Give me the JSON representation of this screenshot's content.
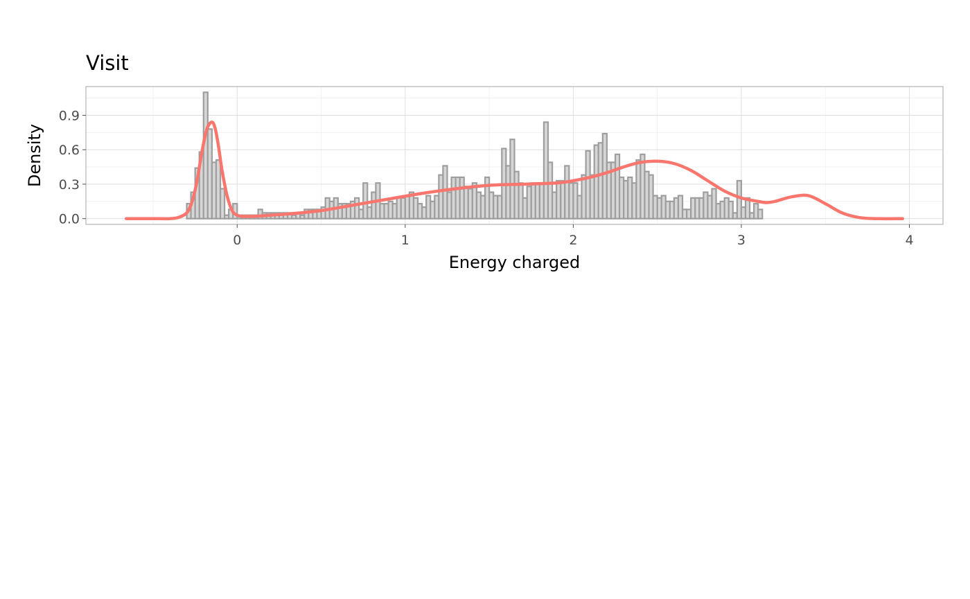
{
  "chart_data": {
    "type": "histogram",
    "title": "Visit",
    "xlabel": "Energy charged",
    "ylabel": "Density",
    "xlim": [
      -0.9,
      4.2
    ],
    "ylim": [
      -0.05,
      1.15
    ],
    "x_ticks": [
      0,
      1,
      2,
      3,
      4
    ],
    "x_tick_labels": [
      "0",
      "1",
      "2",
      "3",
      "4"
    ],
    "y_ticks": [
      0.0,
      0.3,
      0.6,
      0.9
    ],
    "y_tick_labels": [
      "0.0",
      "0.3",
      "0.6",
      "0.9"
    ],
    "grid": true,
    "histogram": {
      "bin_width": 0.025,
      "start": -0.3,
      "values": [
        0.13,
        0.23,
        0.44,
        0.58,
        1.1,
        0.78,
        0.49,
        0.51,
        0.26,
        0.03,
        0.08,
        0.13,
        0.03,
        0.03,
        0.03,
        0.03,
        0.03,
        0.08,
        0.05,
        0.05,
        0.05,
        0.05,
        0.05,
        0.05,
        0.05,
        0.03,
        0.05,
        0.03,
        0.08,
        0.08,
        0.08,
        0.08,
        0.1,
        0.18,
        0.15,
        0.18,
        0.13,
        0.13,
        0.13,
        0.15,
        0.18,
        0.08,
        0.31,
        0.1,
        0.23,
        0.31,
        0.13,
        0.13,
        0.15,
        0.13,
        0.18,
        0.18,
        0.2,
        0.23,
        0.18,
        0.13,
        0.1,
        0.2,
        0.15,
        0.2,
        0.38,
        0.46,
        0.23,
        0.36,
        0.36,
        0.36,
        0.28,
        0.26,
        0.31,
        0.23,
        0.2,
        0.36,
        0.23,
        0.2,
        0.2,
        0.61,
        0.46,
        0.69,
        0.41,
        0.31,
        0.18,
        0.28,
        0.31,
        0.31,
        0.31,
        0.84,
        0.49,
        0.23,
        0.33,
        0.33,
        0.46,
        0.31,
        0.31,
        0.2,
        0.38,
        0.59,
        0.38,
        0.64,
        0.66,
        0.74,
        0.49,
        0.49,
        0.56,
        0.36,
        0.33,
        0.36,
        0.31,
        0.51,
        0.56,
        0.41,
        0.38,
        0.2,
        0.18,
        0.2,
        0.15,
        0.15,
        0.18,
        0.2,
        0.08,
        0.08,
        0.18,
        0.18,
        0.18,
        0.23,
        0.2,
        0.26,
        0.13,
        0.15,
        0.18,
        0.15,
        0.05,
        0.33,
        0.1,
        0.18,
        0.05,
        0.13,
        0.08
      ]
    },
    "series": [
      {
        "type": "density",
        "color": "#F8766D",
        "x": [
          -0.66,
          -0.5,
          -0.4,
          -0.35,
          -0.3,
          -0.27,
          -0.24,
          -0.21,
          -0.18,
          -0.15,
          -0.13,
          -0.11,
          -0.09,
          -0.06,
          -0.03,
          0.0,
          0.03,
          0.06,
          0.1,
          0.2,
          0.3,
          0.5,
          0.7,
          0.9,
          1.1,
          1.3,
          1.5,
          1.7,
          1.9,
          2.0,
          2.1,
          2.2,
          2.3,
          2.4,
          2.5,
          2.6,
          2.7,
          2.8,
          2.9,
          3.0,
          3.1,
          3.15,
          3.2,
          3.3,
          3.4,
          3.5,
          3.6,
          3.7,
          3.8,
          3.96
        ],
        "y": [
          0.0,
          0.0,
          0.0,
          0.01,
          0.05,
          0.14,
          0.32,
          0.58,
          0.78,
          0.84,
          0.78,
          0.62,
          0.42,
          0.2,
          0.07,
          0.03,
          0.02,
          0.02,
          0.02,
          0.03,
          0.04,
          0.07,
          0.12,
          0.17,
          0.22,
          0.26,
          0.29,
          0.3,
          0.31,
          0.33,
          0.36,
          0.4,
          0.45,
          0.49,
          0.5,
          0.48,
          0.42,
          0.33,
          0.24,
          0.18,
          0.15,
          0.14,
          0.15,
          0.19,
          0.2,
          0.13,
          0.05,
          0.01,
          0.0,
          0.0
        ]
      }
    ]
  }
}
